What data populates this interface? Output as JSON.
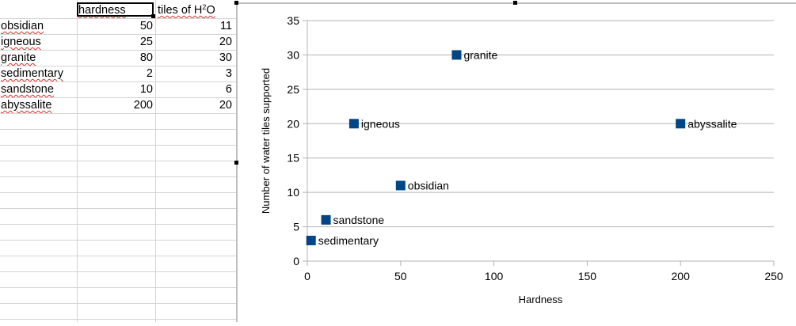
{
  "sheet": {
    "headers": {
      "b": "hardness",
      "c_prefix": "tiles of H",
      "c_sup": "2",
      "c_suffix": "O"
    },
    "rows": [
      {
        "name": "obsidian",
        "hardness": "50",
        "tiles": "11"
      },
      {
        "name": "igneous",
        "hardness": "25",
        "tiles": "20"
      },
      {
        "name": "granite",
        "hardness": "80",
        "tiles": "30"
      },
      {
        "name": "sedimentary",
        "hardness": "2",
        "tiles": "3"
      },
      {
        "name": "sandstone",
        "hardness": "10",
        "tiles": "6"
      },
      {
        "name": "abyssalite",
        "hardness": "200",
        "tiles": "20"
      }
    ]
  },
  "chart_data": {
    "type": "scatter",
    "title": "",
    "xlabel": "Hardness",
    "ylabel": "Number of water tiles supported",
    "xlim": [
      0,
      250
    ],
    "ylim": [
      0,
      35
    ],
    "xticks": [
      0,
      50,
      100,
      150,
      200,
      250
    ],
    "yticks": [
      0,
      5,
      10,
      15,
      20,
      25,
      30,
      35
    ],
    "grid": "horizontal",
    "marker_color": "#004586",
    "points": [
      {
        "label": "obsidian",
        "x": 50,
        "y": 11
      },
      {
        "label": "igneous",
        "x": 25,
        "y": 20
      },
      {
        "label": "granite",
        "x": 80,
        "y": 30
      },
      {
        "label": "sedimentary",
        "x": 2,
        "y": 3
      },
      {
        "label": "sandstone",
        "x": 10,
        "y": 6
      },
      {
        "label": "abyssalite",
        "x": 200,
        "y": 20
      }
    ]
  }
}
